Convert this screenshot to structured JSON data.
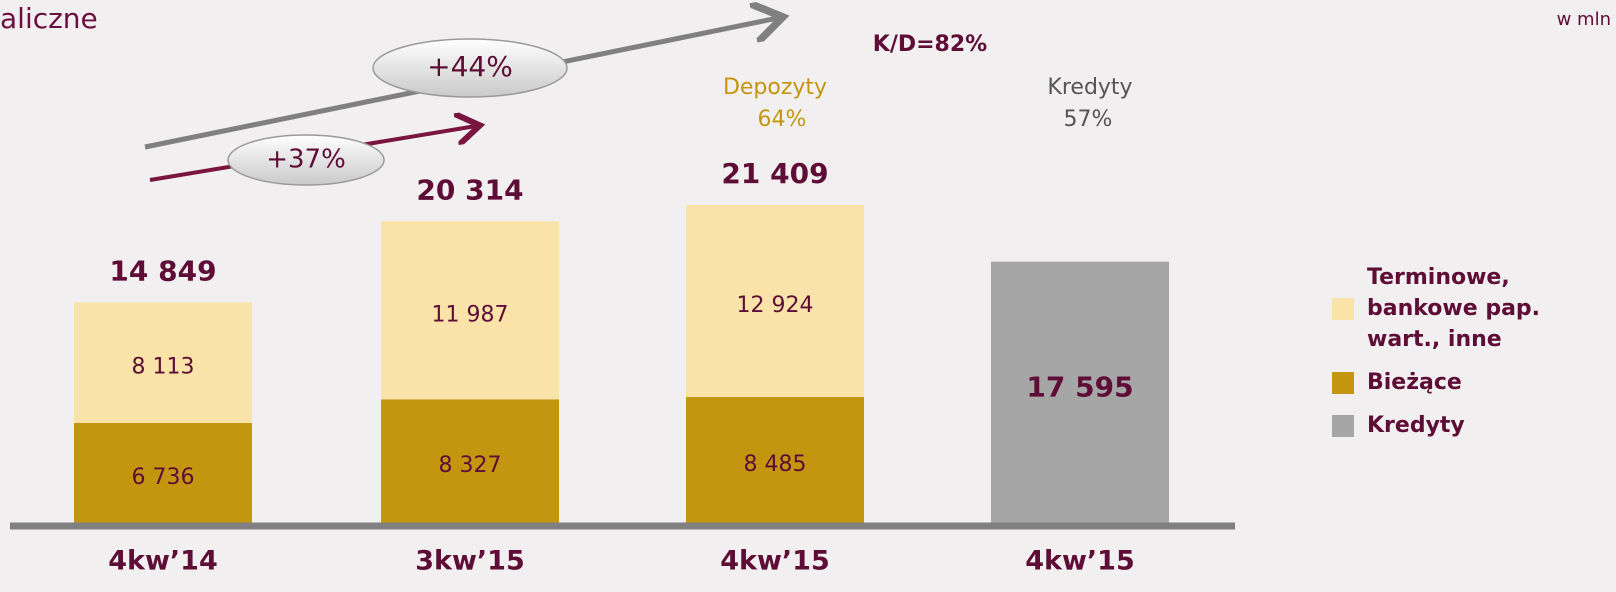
{
  "chart_data": {
    "type": "stacked_bar",
    "title": "aliczne",
    "unit": "w mln",
    "categories": [
      "4kw’14",
      "3kw’15",
      "4kw’15",
      "4kw’15"
    ],
    "series": [
      {
        "name": "Terminowe, bankowe pap. wart., inne",
        "color": "#fae3a9",
        "values": [
          8113,
          11987,
          12924,
          null
        ],
        "value_labels": [
          "8 113",
          "11 987",
          "12 924",
          null
        ]
      },
      {
        "name": "Bieżące",
        "color": "#c4960f",
        "values": [
          6736,
          8327,
          8485,
          null
        ],
        "value_labels": [
          "6 736",
          "8 327",
          "8 485",
          null
        ]
      },
      {
        "name": "Kredyty",
        "color": "#a6a6a6",
        "values": [
          null,
          null,
          null,
          17595
        ],
        "value_labels": [
          null,
          null,
          null,
          "17 595"
        ]
      }
    ],
    "totals": [
      14849,
      20314,
      21409,
      null
    ],
    "total_labels": [
      "14 849",
      "20 314",
      "21 409",
      null
    ],
    "annotations": [
      "+44%",
      "+37%",
      "K/D=82%",
      "Depozyty",
      "64%",
      "Kredyty",
      "57%"
    ]
  }
}
